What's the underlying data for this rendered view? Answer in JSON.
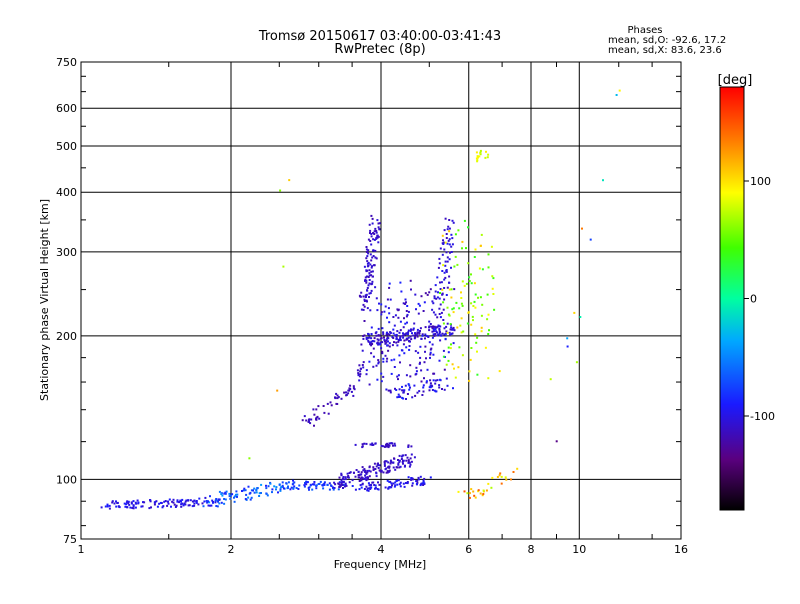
{
  "chart_data": {
    "type": "scatter",
    "title": "Tromsø 20150617 03:40:00-03:41:43",
    "subtitle": "RwPretec (8p)",
    "xlabel": "Frequency [MHz]",
    "ylabel": "Stationary phase Virtual Height [km]",
    "x_scale": "log",
    "y_scale": "log",
    "xlim": [
      1,
      16
    ],
    "ylim": [
      75,
      750
    ],
    "x_ticks": [
      1,
      2,
      4,
      6,
      8,
      10,
      16
    ],
    "x_tick_labels": [
      "1",
      "2",
      "4",
      "6",
      "8",
      "10",
      "16"
    ],
    "y_ticks": [
      75,
      100,
      200,
      300,
      400,
      500,
      600,
      750
    ],
    "y_tick_labels": [
      "75",
      "100",
      "200",
      "300",
      "400",
      "500",
      "600",
      "750"
    ],
    "grid": true,
    "stats": {
      "heading": "Phases",
      "line_o": "mean, sd,O: -92.6, 17.2",
      "line_x": "mean, sd,X:  83.6, 23.6"
    },
    "colorbar": {
      "label": "[deg]",
      "range": [
        -180,
        180
      ],
      "ticks": [
        100,
        0,
        -100
      ],
      "tick_labels": [
        "100",
        "0",
        "-100"
      ],
      "position": "right"
    },
    "series": [
      {
        "name": "",
        "segments": [
          {
            "x0": 1.1,
            "x1": 1.9,
            "y0": 88,
            "y1": 90,
            "n": 120,
            "jx": 0.02,
            "jy": 0.02,
            "p": -100,
            "pj": 12
          },
          {
            "x0": 1.8,
            "x1": 2.6,
            "y0": 90,
            "y1": 97,
            "n": 90,
            "jx": 0.03,
            "jy": 0.03,
            "p": -65,
            "pj": 25
          },
          {
            "x0": 2.6,
            "x1": 3.3,
            "y0": 97,
            "y1": 97,
            "n": 60,
            "jx": 0.03,
            "jy": 0.02,
            "p": -80,
            "pj": 20
          },
          {
            "x0": 3.2,
            "x1": 4.6,
            "y0": 98,
            "y1": 110,
            "n": 160,
            "jx": 0.03,
            "jy": 0.03,
            "p": -110,
            "pj": 8
          },
          {
            "x0": 3.6,
            "x1": 4.6,
            "y0": 118,
            "y1": 118,
            "n": 35,
            "jx": 0.02,
            "jy": 0.01,
            "p": -110,
            "pj": 6
          },
          {
            "x0": 3.6,
            "x1": 5.0,
            "y0": 96,
            "y1": 100,
            "n": 90,
            "jx": 0.03,
            "jy": 0.02,
            "p": -100,
            "pj": 15
          },
          {
            "x0": 2.8,
            "x1": 3.5,
            "y0": 130,
            "y1": 155,
            "n": 45,
            "jx": 0.02,
            "jy": 0.03,
            "p": -115,
            "pj": 6
          },
          {
            "x0": 3.4,
            "x1": 3.7,
            "y0": 150,
            "y1": 170,
            "n": 20,
            "jx": 0.02,
            "jy": 0.04,
            "p": -110,
            "pj": 8
          },
          {
            "x0": 3.7,
            "x1": 3.9,
            "y0": 230,
            "y1": 345,
            "n": 110,
            "jx": 0.025,
            "jy": 0.05,
            "p": -110,
            "pj": 8
          },
          {
            "x0": 3.7,
            "x1": 5.6,
            "y0": 196,
            "y1": 206,
            "n": 170,
            "jx": 0.03,
            "jy": 0.03,
            "p": -108,
            "pj": 12
          },
          {
            "x0": 3.8,
            "x1": 5.4,
            "y0": 165,
            "y1": 240,
            "n": 200,
            "jx": 0.05,
            "jy": 0.12,
            "p": -105,
            "pj": 18
          },
          {
            "x0": 4.2,
            "x1": 5.5,
            "y0": 150,
            "y1": 160,
            "n": 50,
            "jx": 0.03,
            "jy": 0.03,
            "p": -100,
            "pj": 18
          },
          {
            "x0": 5.2,
            "x1": 5.5,
            "y0": 220,
            "y1": 345,
            "n": 70,
            "jx": 0.03,
            "jy": 0.05,
            "p": -105,
            "pj": 10
          },
          {
            "x0": 5.4,
            "x1": 6.6,
            "y0": 170,
            "y1": 330,
            "n": 110,
            "jx": 0.05,
            "jy": 0.12,
            "p": 70,
            "pj": 40
          },
          {
            "x0": 6.2,
            "x1": 6.6,
            "y0": 470,
            "y1": 490,
            "n": 15,
            "jx": 0.02,
            "jy": 0.02,
            "p": 85,
            "pj": 15
          },
          {
            "x0": 5.6,
            "x1": 7.4,
            "y0": 90,
            "y1": 103,
            "n": 30,
            "jx": 0.04,
            "jy": 0.03,
            "p": 110,
            "pj": 40
          },
          {
            "x0": 8.5,
            "x1": 12,
            "y0": 90,
            "y1": 600,
            "n": 12,
            "jx": 0.05,
            "jy": 0.25,
            "p": 0,
            "pj": 140
          },
          {
            "x0": 2.2,
            "x1": 2.7,
            "y0": 110,
            "y1": 560,
            "n": 5,
            "jx": 0.05,
            "jy": 0.3,
            "p": 80,
            "pj": 60
          }
        ]
      }
    ]
  }
}
